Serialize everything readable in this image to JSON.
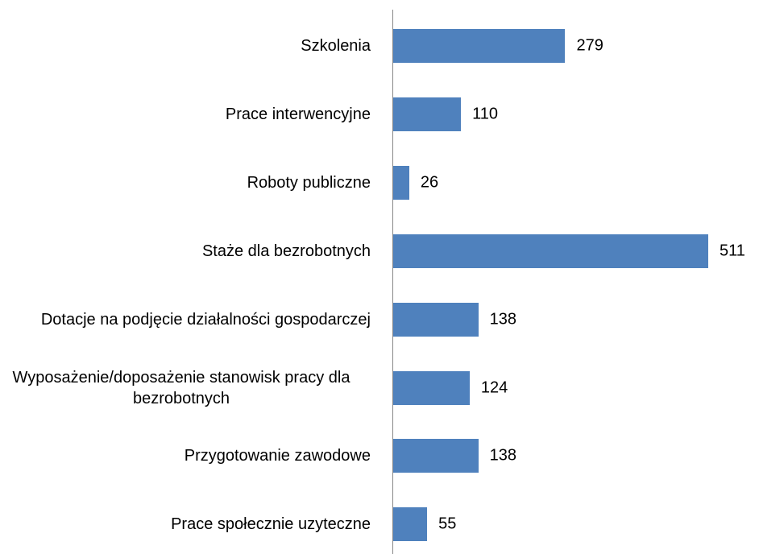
{
  "chart_data": {
    "type": "bar",
    "orientation": "horizontal",
    "color": "#4f81bd",
    "categories": [
      "Szkolenia",
      "Prace interwencyjne",
      "Roboty publiczne",
      "Staże dla bezrobotnych",
      "Dotacje na podjęcie działalności gospodarczej",
      "Wyposażenie/doposażenie stanowisk pracy dla bezrobotnych",
      "Przygotowanie zawodowe",
      "Prace społecznie uzyteczne"
    ],
    "values": [
      279,
      110,
      26,
      511,
      138,
      124,
      138,
      55
    ]
  }
}
